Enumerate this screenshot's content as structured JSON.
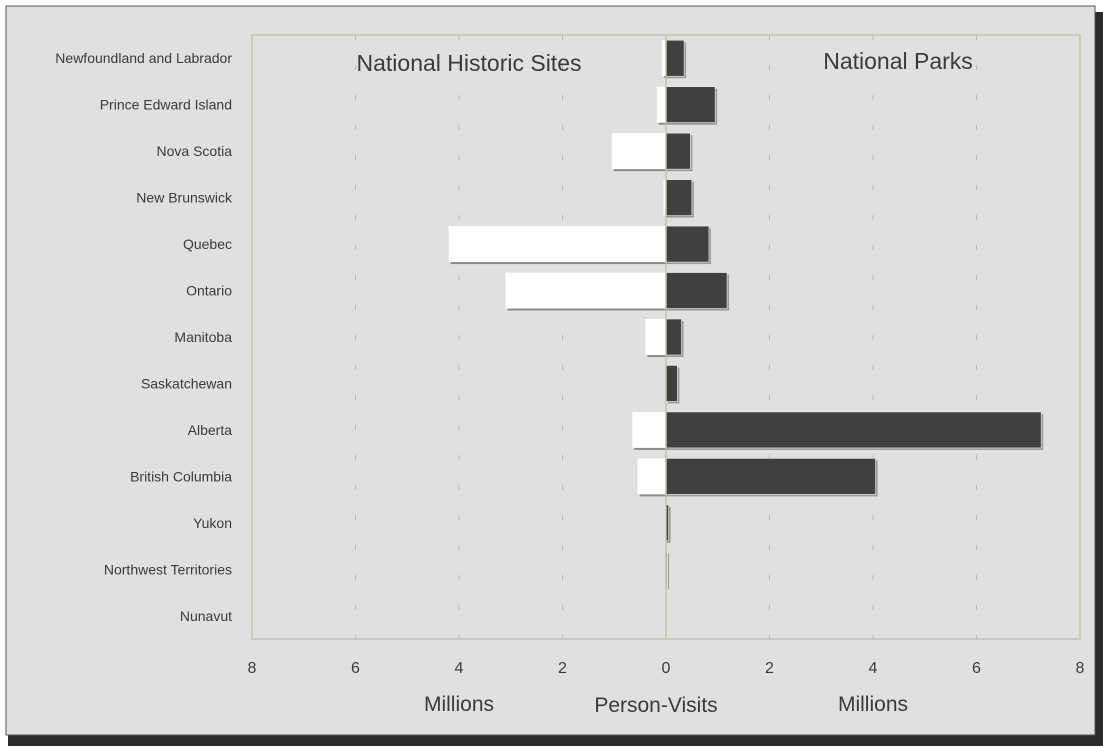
{
  "chart_data": {
    "type": "bar",
    "orientation": "horizontal",
    "layout": "back-to-back",
    "categories": [
      "Newfoundland and Labrador",
      "Prince Edward Island",
      "Nova Scotia",
      "New Brunswick",
      "Quebec",
      "Ontario",
      "Manitoba",
      "Saskatchewan",
      "Alberta",
      "British Columbia",
      "Yukon",
      "Northwest Territories",
      "Nunavut"
    ],
    "series": [
      {
        "name": "National Historic Sites",
        "side": "left",
        "color": "#ffffff",
        "values": [
          0.08,
          0.18,
          1.05,
          0.05,
          4.2,
          3.1,
          0.4,
          0.0,
          0.65,
          0.55,
          0.02,
          0.0,
          0.0
        ]
      },
      {
        "name": "National Parks",
        "side": "right",
        "color": "#404040",
        "values": [
          0.35,
          0.95,
          0.47,
          0.5,
          0.83,
          1.18,
          0.3,
          0.22,
          7.25,
          4.05,
          0.05,
          0.02,
          0.0
        ]
      }
    ],
    "xlim": [
      0,
      8
    ],
    "x_ticks": [
      "8",
      "6",
      "4",
      "2",
      "0",
      "2",
      "4",
      "6",
      "8"
    ],
    "xlabel_left": "Millions",
    "xlabel_center": "Person-Visits",
    "xlabel_right": "Millions",
    "grid": "vertical dashed",
    "colors": {
      "plot_background": "#e0e0e0",
      "plot_border": "#c0c4a8",
      "frame_shadow": "#2a2a2a"
    }
  }
}
